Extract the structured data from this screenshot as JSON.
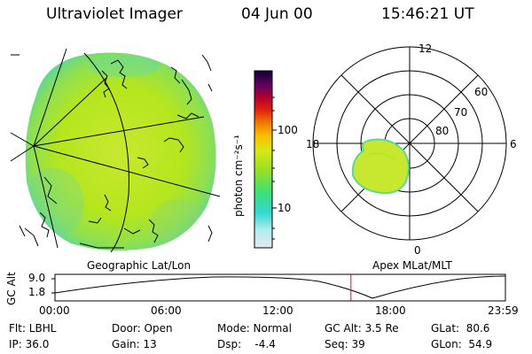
{
  "header": {
    "title": "Ultraviolet Imager",
    "date": "04 Jun 00",
    "time": "15:46:21 UT"
  },
  "colorbar": {
    "unit_label": "photon cm⁻²s⁻¹",
    "ticks": [
      "100",
      "10"
    ]
  },
  "geo_panel": {
    "caption": "Geographic Lat/Lon"
  },
  "polar_panel": {
    "caption": "Apex MLat/MLT",
    "hour_labels": {
      "top": "12",
      "left": "18",
      "right": "6",
      "bottom": "0"
    },
    "lat_labels": [
      "60",
      "70",
      "80"
    ]
  },
  "timeline": {
    "axis_label": "GC Alt",
    "y_ticks": [
      "9.0",
      "1.8"
    ],
    "x_ticks": [
      "00:00",
      "06:00",
      "12:00",
      "18:00",
      "23:59"
    ],
    "current_marker_hours": 15.77
  },
  "info": {
    "filter": "Flt: LBHL",
    "ip": "IP: 36.0",
    "door": "Door: Open",
    "gain": "Gain: 13",
    "mode": "Mode: Normal",
    "dsp": "Dsp:    -4.4",
    "gc_alt": "GC Alt: 3.5 Re",
    "seq": "Seq: 39",
    "glat": "GLat:  80.6",
    "glon": "GLon:  54.9"
  },
  "colors": {
    "earth_fill": "#b5e61d",
    "aurora_fill": "#c8e830",
    "marker": "#ff0000"
  }
}
